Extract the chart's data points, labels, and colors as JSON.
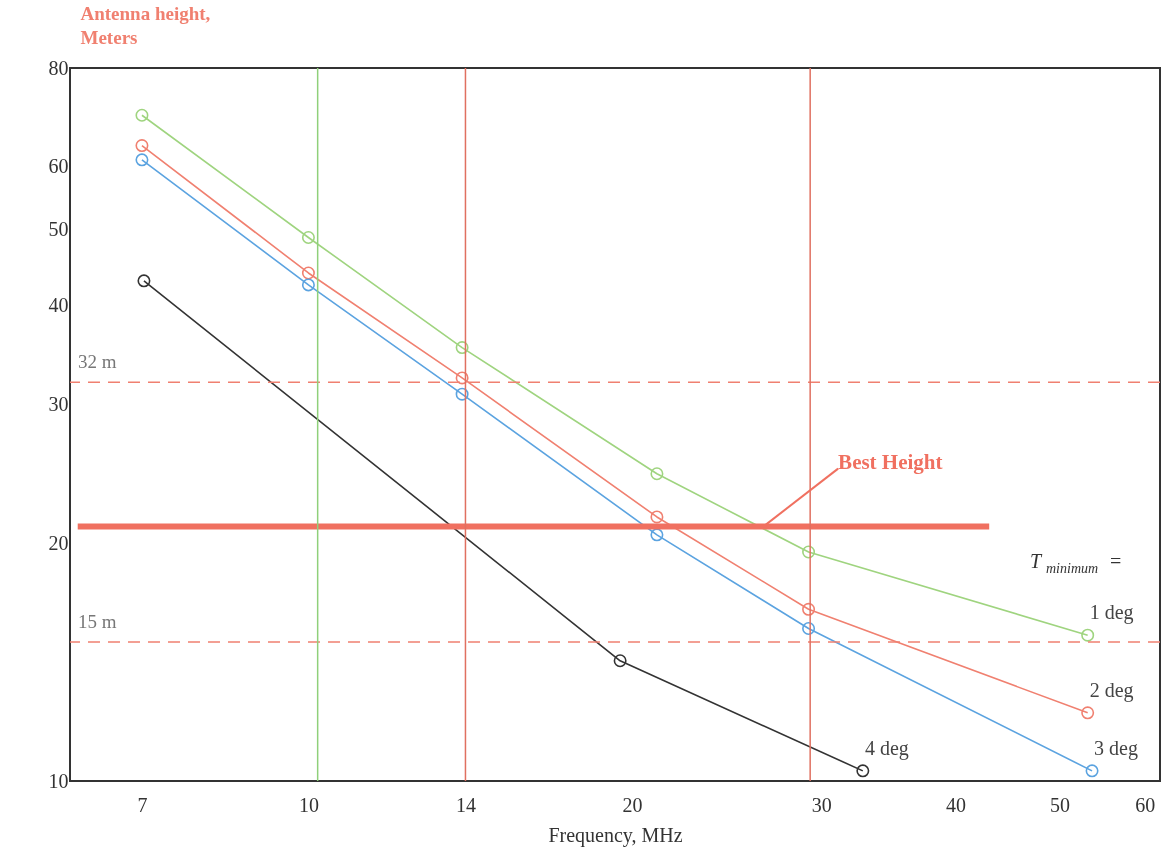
{
  "chart_data": {
    "type": "line",
    "xlabel": "Frequency, MHz",
    "ylabel": "Antenna height,\nMeters",
    "log": "xy",
    "xlim": [
      6,
      62
    ],
    "ylim": [
      10,
      80
    ],
    "xticks": [
      7,
      10,
      14,
      20,
      30,
      40,
      50,
      60
    ],
    "yticks": [
      10,
      20,
      30,
      40,
      50,
      60,
      80
    ],
    "marker": "circle",
    "line_style": "solid",
    "series": [
      {
        "name": "1 deg",
        "color": "#9fd47f",
        "x": [
          7,
          10,
          13.9,
          21.1,
          29.2,
          53.1
        ],
        "values": [
          69.7,
          48.8,
          35.4,
          24.5,
          19.5,
          15.3
        ]
      },
      {
        "name": "2 deg",
        "color": "#f08070",
        "x": [
          7,
          10,
          13.9,
          21.1,
          29.2,
          53.1
        ],
        "values": [
          63.8,
          44,
          32.4,
          21.6,
          16.5,
          12.2
        ]
      },
      {
        "name": "3 deg",
        "color": "#5ba3e0",
        "x": [
          7,
          10,
          13.9,
          21.1,
          29.2,
          53.6
        ],
        "values": [
          61.2,
          42.5,
          30.9,
          20.5,
          15.6,
          10.3
        ]
      },
      {
        "name": "4 deg",
        "color": "#333333",
        "x": [
          7.03,
          19.5,
          32.8
        ],
        "values": [
          43,
          14.2,
          10.3
        ]
      },
      {
        "type": "line",
        "marker": "none",
        "color": "#f07060",
        "x": [
          6.1,
          43
        ],
        "values": [
          21,
          21
        ]
      }
    ],
    "ref_lines": [
      {
        "axis": "y",
        "value": 32,
        "label": "32 m",
        "color": "#f08070",
        "line_style": "dashed"
      },
      {
        "axis": "y",
        "value": 15,
        "label": "15 m",
        "color": "#f08070",
        "line_style": "dashed"
      },
      {
        "axis": "x",
        "value": 10.2,
        "color": "#8fd07a"
      },
      {
        "axis": "x",
        "value": 14,
        "color": "#e07060"
      },
      {
        "axis": "x",
        "value": 29.3,
        "color": "#e07060"
      }
    ],
    "annotations": [
      {
        "text": "Best Height",
        "x": 26.5,
        "y": 21
      },
      "T$_{minimum}$ ="
    ]
  }
}
